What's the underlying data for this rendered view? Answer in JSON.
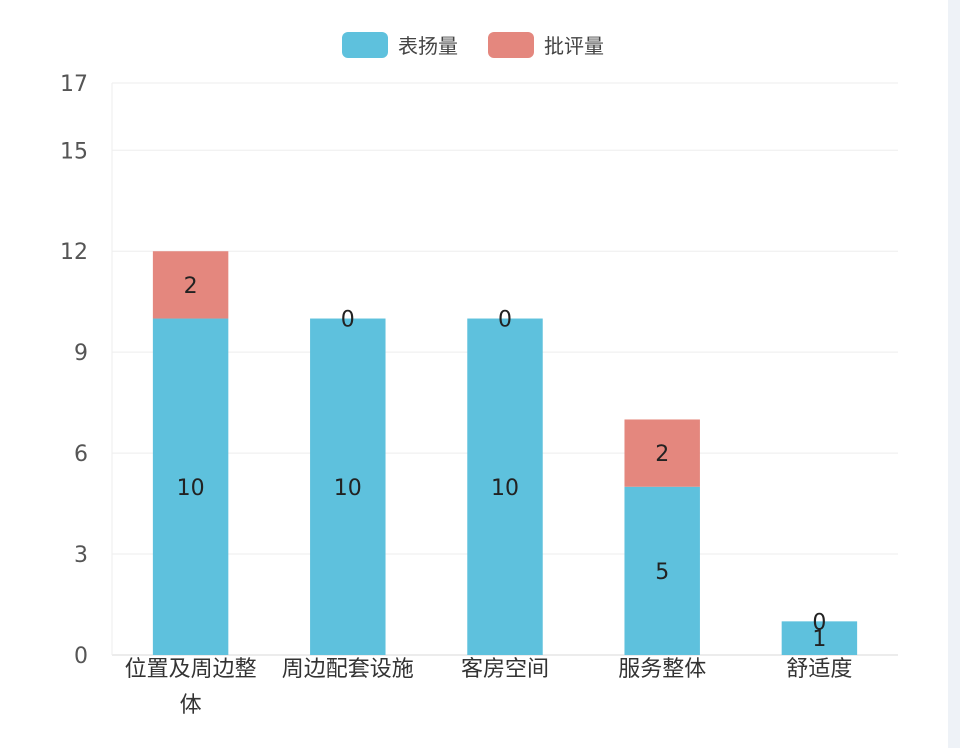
{
  "chart_data": {
    "type": "bar",
    "stacked": true,
    "categories": [
      "位置及周边整体",
      "周边配套设施",
      "客房空间",
      "服务整体",
      "舒适度"
    ],
    "category_lines": [
      [
        "位置及周边整",
        "体"
      ],
      [
        "周边配套设施"
      ],
      [
        "客房空间"
      ],
      [
        "服务整体"
      ],
      [
        "舒适度"
      ]
    ],
    "series": [
      {
        "name": "表扬量",
        "values": [
          10,
          10,
          10,
          5,
          1
        ],
        "color": "#5ec1dd"
      },
      {
        "name": "批评量",
        "values": [
          2,
          0,
          0,
          2,
          0
        ],
        "color": "#e4877e"
      }
    ],
    "yticks": [
      0,
      3,
      6,
      9,
      12,
      15,
      17
    ],
    "ylim": [
      0,
      17
    ],
    "grid": true,
    "legend": "top-center",
    "data_labels": true
  }
}
